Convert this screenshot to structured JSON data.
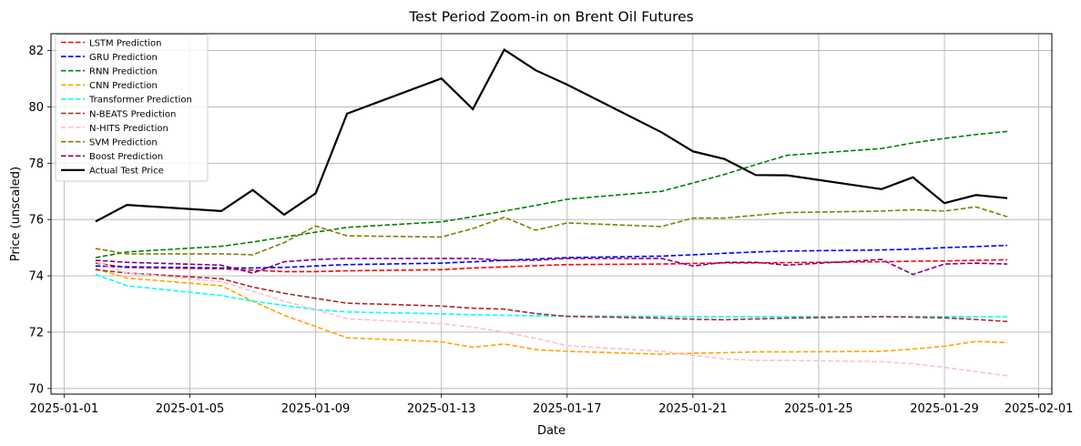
{
  "chart_data": {
    "type": "line",
    "title": "Test Period Zoom-in on Brent Oil Futures",
    "xlabel": "Date",
    "ylabel": "Price (unscaled)",
    "xlim": [
      "2024-12-31T14:00",
      "2025-02-01T10:00"
    ],
    "ylim": [
      69.8,
      82.6
    ],
    "grid": true,
    "legend_position": "upper-left",
    "x_ticks": [
      "2025-01-01",
      "2025-01-05",
      "2025-01-09",
      "2025-01-13",
      "2025-01-17",
      "2025-01-21",
      "2025-01-25",
      "2025-01-29",
      "2025-02-01"
    ],
    "y_ticks": [
      70,
      72,
      74,
      76,
      78,
      80,
      82
    ],
    "x": [
      "2025-01-02",
      "2025-01-03",
      "2025-01-06",
      "2025-01-07",
      "2025-01-08",
      "2025-01-09",
      "2025-01-10",
      "2025-01-13",
      "2025-01-14",
      "2025-01-15",
      "2025-01-16",
      "2025-01-17",
      "2025-01-20",
      "2025-01-21",
      "2025-01-22",
      "2025-01-23",
      "2025-01-24",
      "2025-01-27",
      "2025-01-28",
      "2025-01-29",
      "2025-01-30",
      "2025-01-31"
    ],
    "series": [
      {
        "name": "LSTM Prediction",
        "color": "#ff0000",
        "style": "dashed",
        "values": [
          74.45,
          74.3,
          74.25,
          74.2,
          74.15,
          74.15,
          74.18,
          74.22,
          74.28,
          74.32,
          74.36,
          74.4,
          74.42,
          74.44,
          74.46,
          74.46,
          74.47,
          74.5,
          74.52,
          74.53,
          74.55,
          74.57
        ]
      },
      {
        "name": "GRU Prediction",
        "color": "#0000ff",
        "style": "dashed",
        "values": [
          74.35,
          74.32,
          74.28,
          74.28,
          74.3,
          74.35,
          74.4,
          74.45,
          74.5,
          74.55,
          74.6,
          74.65,
          74.7,
          74.75,
          74.8,
          74.85,
          74.88,
          74.92,
          74.95,
          75.0,
          75.04,
          75.08
        ]
      },
      {
        "name": "RNN Prediction",
        "color": "#008000",
        "style": "dashed",
        "values": [
          74.65,
          74.85,
          75.05,
          75.2,
          75.38,
          75.55,
          75.72,
          75.92,
          76.1,
          76.3,
          76.5,
          76.72,
          77.0,
          77.3,
          77.6,
          77.95,
          78.28,
          78.52,
          78.72,
          78.88,
          79.02,
          79.13
        ]
      },
      {
        "name": "CNN Prediction",
        "color": "#ffa500",
        "style": "dashed",
        "values": [
          74.25,
          73.92,
          73.65,
          73.1,
          72.6,
          72.2,
          71.8,
          71.66,
          71.46,
          71.58,
          71.38,
          71.32,
          71.22,
          71.25,
          71.27,
          71.3,
          71.3,
          71.32,
          71.4,
          71.5,
          71.67,
          71.63
        ]
      },
      {
        "name": "Transformer Prediction",
        "color": "#00ffff",
        "style": "dashed",
        "values": [
          74.05,
          73.65,
          73.3,
          73.1,
          72.95,
          72.8,
          72.72,
          72.65,
          72.62,
          72.6,
          72.58,
          72.57,
          72.56,
          72.55,
          72.55,
          72.55,
          72.55,
          72.55,
          72.55,
          72.55,
          72.55,
          72.55
        ]
      },
      {
        "name": "N-BEATS Prediction",
        "color": "#a52a2a",
        "style": "dashed",
        "values": [
          74.22,
          74.1,
          73.9,
          73.6,
          73.38,
          73.2,
          73.03,
          72.93,
          72.85,
          72.82,
          72.66,
          72.56,
          72.5,
          72.46,
          72.44,
          72.47,
          72.5,
          72.55,
          72.53,
          72.51,
          72.45,
          72.38
        ]
      },
      {
        "name": "N-HITS Prediction",
        "color": "#ffc0cb",
        "style": "dashed",
        "values": [
          74.5,
          74.1,
          73.8,
          73.45,
          73.1,
          72.8,
          72.48,
          72.3,
          72.18,
          72.0,
          71.78,
          71.52,
          71.32,
          71.18,
          71.05,
          71.0,
          71.0,
          70.95,
          70.88,
          70.75,
          70.6,
          70.45
        ]
      },
      {
        "name": "SVM Prediction",
        "color": "#808000",
        "style": "dashed",
        "values": [
          74.97,
          74.78,
          74.78,
          74.75,
          75.18,
          75.77,
          75.42,
          75.38,
          75.68,
          76.08,
          75.62,
          75.88,
          75.75,
          76.05,
          76.05,
          76.15,
          76.25,
          76.3,
          76.35,
          76.3,
          76.45,
          76.1
        ]
      },
      {
        "name": "Boost Prediction",
        "color": "#800080",
        "style": "dashed",
        "values": [
          74.55,
          74.48,
          74.38,
          74.1,
          74.5,
          74.58,
          74.62,
          74.62,
          74.62,
          74.55,
          74.55,
          74.62,
          74.62,
          74.35,
          74.48,
          74.48,
          74.38,
          74.58,
          74.05,
          74.42,
          74.45,
          74.42
        ]
      },
      {
        "name": "Actual Test Price",
        "color": "#000000",
        "style": "solid",
        "values": [
          75.93,
          76.52,
          76.3,
          77.05,
          76.17,
          76.93,
          79.76,
          81.01,
          79.92,
          82.03,
          81.3,
          80.79,
          79.1,
          78.42,
          78.15,
          77.58,
          77.57,
          77.08,
          77.5,
          76.58,
          76.87,
          76.76
        ]
      }
    ]
  }
}
